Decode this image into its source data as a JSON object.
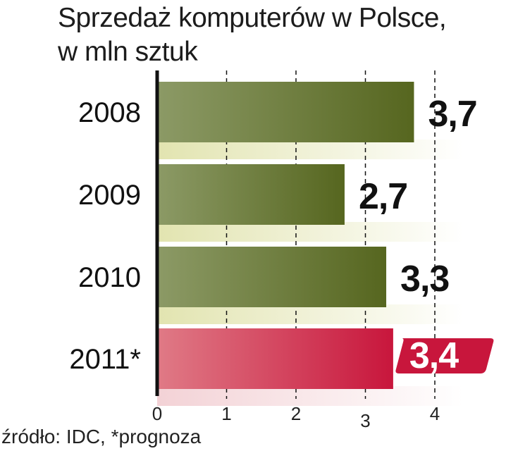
{
  "chart_data": {
    "type": "bar",
    "orientation": "horizontal",
    "title": "Sprzedaż komputerów w Polsce,",
    "subtitle": "w mln sztuk",
    "categories": [
      "2008",
      "2009",
      "2010",
      "2011*"
    ],
    "values": [
      3.7,
      2.7,
      3.3,
      3.4
    ],
    "value_labels": [
      "3,7",
      "2,7",
      "3,3",
      "3,4"
    ],
    "highlighted": [
      false,
      false,
      false,
      true
    ],
    "xlim": [
      0,
      4
    ],
    "x_ticks": [
      "0",
      "1",
      "2",
      "3",
      "4"
    ],
    "grid": "vertical dashed",
    "colors": {
      "bar": "#5a6a26",
      "bar_light": "#8c9a66",
      "highlight": "#c8163c",
      "highlight_light": "#e07a86",
      "band": "#ecedc8",
      "highlight_band": "#f6dede"
    }
  },
  "source": "źródło: IDC, *prognoza"
}
